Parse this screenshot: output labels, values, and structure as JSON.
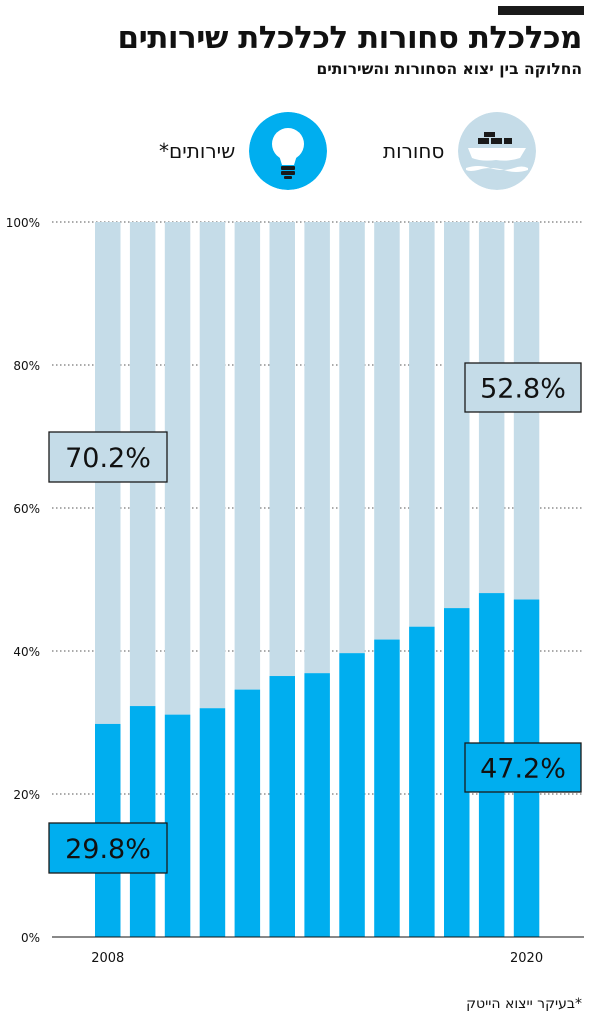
{
  "header": {
    "title": "מכלכלת סחורות לכלכלת שירותים",
    "subtitle": "החלוקה בין יצוא הסחורות והשירותים"
  },
  "legend": {
    "goods": {
      "label": "סחורות",
      "icon": "cargo-ship-icon",
      "color": "#c5dce8"
    },
    "services": {
      "label": "שירותים*",
      "icon": "lightbulb-icon",
      "color": "#00aeef"
    }
  },
  "footnote": "*בעיקר ייצוא הייטק",
  "chart_data": {
    "type": "bar",
    "stacked": true,
    "categories": [
      "2008",
      "",
      "",
      "",
      "",
      "",
      "",
      "",
      "",
      "",
      "",
      "",
      "2020"
    ],
    "series": [
      {
        "name": "שירותים*",
        "color": "#00aeef",
        "values": [
          29.8,
          32.3,
          31.1,
          32.0,
          34.6,
          36.5,
          36.9,
          39.7,
          41.6,
          43.4,
          46.0,
          48.1,
          47.2
        ]
      },
      {
        "name": "סחורות",
        "color": "#c5dce8",
        "values": [
          70.2,
          67.7,
          68.9,
          68.0,
          65.4,
          63.5,
          63.1,
          60.3,
          58.4,
          56.6,
          54.0,
          51.9,
          52.8
        ]
      }
    ],
    "yticks": [
      "0%",
      "20%",
      "40%",
      "60%",
      "80%",
      "100%"
    ],
    "ylim": [
      0,
      100
    ],
    "grid": true,
    "annotations": [
      {
        "text": "70.2%",
        "series": "goods",
        "category_index": 0
      },
      {
        "text": "29.8%",
        "series": "services",
        "category_index": 0
      },
      {
        "text": "52.8%",
        "series": "goods",
        "category_index": 12
      },
      {
        "text": "47.2%",
        "series": "services",
        "category_index": 12
      }
    ]
  }
}
